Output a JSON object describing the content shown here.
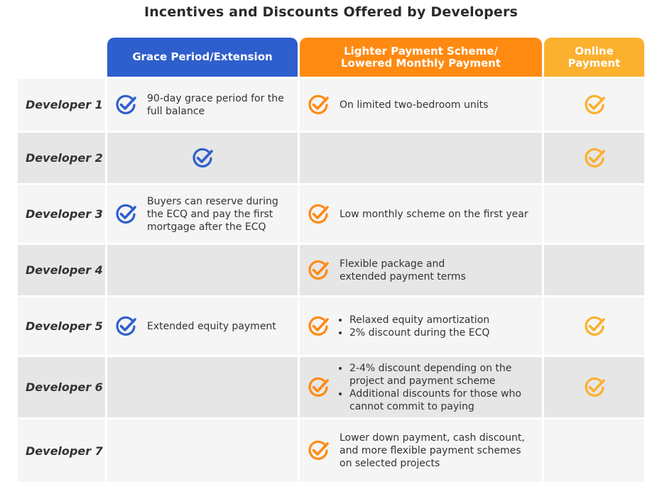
{
  "title": "Incentives and Discounts Offered by Developers",
  "colors": {
    "grace": "#2f5fcd",
    "lighter": "#ff8a12",
    "online": "#fbb02e",
    "row_light": "#f5f5f5",
    "row_dark": "#e6e6e6"
  },
  "icons": {
    "check": "check-circle-icon"
  },
  "columns": {
    "grace": "Grace Period/Extension",
    "lighter": "Lighter Payment Scheme/\nLowered Monthly Payment",
    "online": "Online\nPayment"
  },
  "chart_data": {
    "type": "table",
    "title": "Incentives and Discounts Offered by Developers",
    "columns": [
      "Grace Period/Extension",
      "Lighter Payment Scheme/ Lowered Monthly Payment",
      "Online Payment"
    ],
    "rows": [
      {
        "developer": "Developer 1",
        "grace": {
          "checked": true,
          "text": "90-day grace period for the\nfull balance"
        },
        "lighter": {
          "checked": true,
          "text": "On limited two-bedroom units"
        },
        "online": {
          "checked": true
        }
      },
      {
        "developer": "Developer 2",
        "grace": {
          "checked": true,
          "text": ""
        },
        "lighter": {
          "checked": false,
          "text": ""
        },
        "online": {
          "checked": true
        }
      },
      {
        "developer": "Developer 3",
        "grace": {
          "checked": true,
          "text": "Buyers can reserve during\nthe ECQ and pay the first\nmortgage after the ECQ"
        },
        "lighter": {
          "checked": true,
          "text": "Low monthly scheme on the first year"
        },
        "online": {
          "checked": false
        }
      },
      {
        "developer": "Developer 4",
        "grace": {
          "checked": false,
          "text": ""
        },
        "lighter": {
          "checked": true,
          "text": "Flexible package and\nextended payment terms"
        },
        "online": {
          "checked": false
        }
      },
      {
        "developer": "Developer 5",
        "grace": {
          "checked": true,
          "text": "Extended equity payment"
        },
        "lighter": {
          "checked": true,
          "bullets": [
            "Relaxed equity amortization",
            "2% discount during the ECQ"
          ]
        },
        "online": {
          "checked": true
        }
      },
      {
        "developer": "Developer 6",
        "grace": {
          "checked": false,
          "text": ""
        },
        "lighter": {
          "checked": true,
          "bullets": [
            "2-4% discount depending on the project and payment scheme",
            "Additional discounts for those who cannot commit to paying"
          ]
        },
        "online": {
          "checked": true
        }
      },
      {
        "developer": "Developer 7",
        "grace": {
          "checked": false,
          "text": ""
        },
        "lighter": {
          "checked": true,
          "text": "Lower down payment, cash discount,\nand more flexible payment schemes\non selected projects"
        },
        "online": {
          "checked": false
        }
      }
    ]
  }
}
